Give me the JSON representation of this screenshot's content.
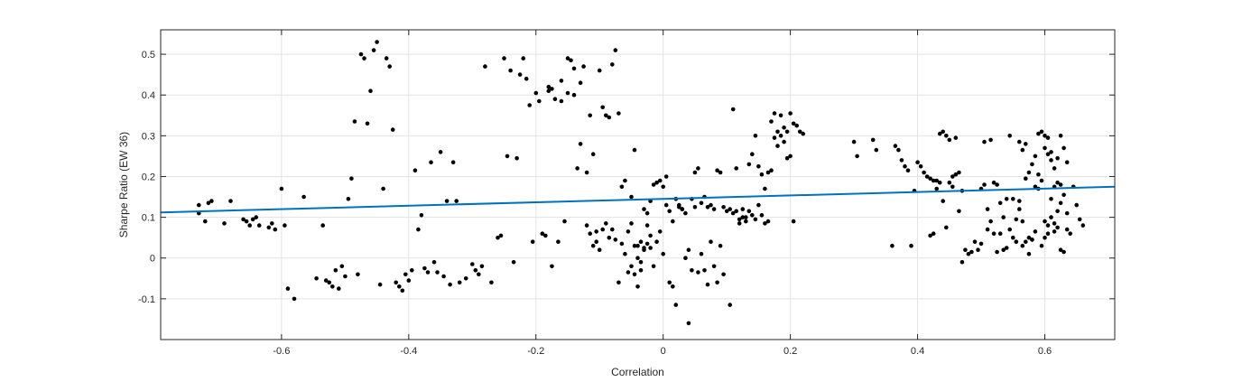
{
  "chart_data": {
    "type": "scatter",
    "title": "",
    "xlabel": "Correlation",
    "ylabel": "Sharpe Ratio (EW 36)",
    "xlim": [
      -0.79,
      0.71
    ],
    "ylim": [
      -0.2,
      0.56
    ],
    "xticks": [
      -0.6,
      -0.4,
      -0.2,
      0,
      0.2,
      0.4,
      0.6
    ],
    "yticks": [
      -0.1,
      0,
      0.1,
      0.2,
      0.3,
      0.4,
      0.5
    ],
    "xtick_labels": [
      "-0.6",
      "-0.4",
      "-0.2",
      "0",
      "0.2",
      "0.4",
      "0.6"
    ],
    "ytick_labels": [
      "-0.1",
      "0",
      "0.1",
      "0.2",
      "0.3",
      "0.4",
      "0.5"
    ],
    "grid": true,
    "colors": {
      "points": "#000000",
      "fit_line": "#0072BD",
      "grid": "#e3e3e3",
      "axes": "#262626"
    },
    "fit_line": {
      "x": [
        -0.79,
        0.71
      ],
      "y": [
        0.112,
        0.175
      ]
    },
    "points": [
      [
        -0.73,
        0.13
      ],
      [
        -0.73,
        0.11
      ],
      [
        -0.72,
        0.09
      ],
      [
        -0.715,
        0.135
      ],
      [
        -0.71,
        0.14
      ],
      [
        -0.69,
        0.085
      ],
      [
        -0.68,
        0.14
      ],
      [
        -0.66,
        0.095
      ],
      [
        -0.655,
        0.09
      ],
      [
        -0.65,
        0.08
      ],
      [
        -0.645,
        0.095
      ],
      [
        -0.64,
        0.1
      ],
      [
        -0.635,
        0.08
      ],
      [
        -0.62,
        0.075
      ],
      [
        -0.615,
        0.085
      ],
      [
        -0.61,
        0.07
      ],
      [
        -0.6,
        0.17
      ],
      [
        -0.595,
        0.08
      ],
      [
        -0.59,
        -0.075
      ],
      [
        -0.58,
        -0.1
      ],
      [
        -0.565,
        0.15
      ],
      [
        -0.545,
        -0.05
      ],
      [
        -0.535,
        0.08
      ],
      [
        -0.53,
        -0.055
      ],
      [
        -0.525,
        -0.06
      ],
      [
        -0.52,
        -0.07
      ],
      [
        -0.515,
        -0.03
      ],
      [
        -0.51,
        -0.075
      ],
      [
        -0.505,
        -0.02
      ],
      [
        -0.5,
        -0.045
      ],
      [
        -0.495,
        0.145
      ],
      [
        -0.49,
        0.195
      ],
      [
        -0.485,
        0.335
      ],
      [
        -0.48,
        -0.04
      ],
      [
        -0.475,
        0.5
      ],
      [
        -0.47,
        0.49
      ],
      [
        -0.465,
        0.33
      ],
      [
        -0.46,
        0.41
      ],
      [
        -0.455,
        0.51
      ],
      [
        -0.45,
        0.53
      ],
      [
        -0.445,
        -0.065
      ],
      [
        -0.44,
        0.17
      ],
      [
        -0.435,
        0.49
      ],
      [
        -0.43,
        0.47
      ],
      [
        -0.425,
        0.315
      ],
      [
        -0.42,
        -0.06
      ],
      [
        -0.415,
        -0.07
      ],
      [
        -0.41,
        -0.08
      ],
      [
        -0.405,
        -0.04
      ],
      [
        -0.4,
        -0.055
      ],
      [
        -0.395,
        -0.03
      ],
      [
        -0.39,
        0.215
      ],
      [
        -0.385,
        0.07
      ],
      [
        -0.38,
        0.105
      ],
      [
        -0.375,
        -0.025
      ],
      [
        -0.37,
        -0.035
      ],
      [
        -0.365,
        0.235
      ],
      [
        -0.36,
        -0.01
      ],
      [
        -0.355,
        -0.035
      ],
      [
        -0.35,
        0.26
      ],
      [
        -0.345,
        -0.045
      ],
      [
        -0.34,
        0.14
      ],
      [
        -0.335,
        -0.065
      ],
      [
        -0.33,
        0.235
      ],
      [
        -0.325,
        0.14
      ],
      [
        -0.32,
        -0.06
      ],
      [
        -0.31,
        -0.05
      ],
      [
        -0.3,
        -0.015
      ],
      [
        -0.295,
        -0.03
      ],
      [
        -0.29,
        -0.04
      ],
      [
        -0.285,
        -0.02
      ],
      [
        -0.28,
        0.47
      ],
      [
        -0.27,
        -0.06
      ],
      [
        -0.26,
        0.05
      ],
      [
        -0.255,
        0.055
      ],
      [
        -0.25,
        0.49
      ],
      [
        -0.245,
        0.25
      ],
      [
        -0.24,
        0.46
      ],
      [
        -0.235,
        -0.01
      ],
      [
        -0.23,
        0.245
      ],
      [
        -0.225,
        0.45
      ],
      [
        -0.22,
        0.49
      ],
      [
        -0.215,
        0.44
      ],
      [
        -0.21,
        0.375
      ],
      [
        -0.205,
        0.04
      ],
      [
        -0.2,
        0.405
      ],
      [
        -0.195,
        0.385
      ],
      [
        -0.19,
        0.06
      ],
      [
        -0.185,
        0.055
      ],
      [
        -0.18,
        0.42
      ],
      [
        -0.175,
        -0.02
      ],
      [
        -0.17,
        0.39
      ],
      [
        -0.165,
        0.04
      ],
      [
        -0.16,
        0.435
      ],
      [
        -0.155,
        0.09
      ],
      [
        -0.15,
        0.405
      ],
      [
        -0.14,
        0.465
      ],
      [
        -0.135,
        0.22
      ],
      [
        -0.13,
        0.28
      ],
      [
        -0.125,
        0.47
      ],
      [
        -0.12,
        0.21
      ],
      [
        -0.115,
        0.35
      ],
      [
        -0.11,
        0.255
      ],
      [
        -0.105,
        0.065
      ],
      [
        -0.1,
        0.46
      ],
      [
        -0.095,
        0.37
      ],
      [
        -0.09,
        0.35
      ],
      [
        -0.085,
        0.345
      ],
      [
        -0.08,
        0.475
      ],
      [
        -0.075,
        0.51
      ],
      [
        -0.07,
        0.355
      ],
      [
        -0.065,
        0.175
      ],
      [
        -0.06,
        0.19
      ],
      [
        -0.055,
        -0.035
      ],
      [
        -0.05,
        0.15
      ],
      [
        -0.045,
        0.265
      ],
      [
        -0.04,
        0.03
      ],
      [
        -0.035,
        0.04
      ],
      [
        -0.03,
        0.025
      ],
      [
        -0.025,
        0.035
      ],
      [
        -0.02,
        0.025
      ],
      [
        -0.18,
        0.41
      ],
      [
        -0.175,
        0.415
      ],
      [
        -0.16,
        0.385
      ],
      [
        -0.15,
        0.49
      ],
      [
        -0.145,
        0.485
      ],
      [
        -0.14,
        0.4
      ],
      [
        -0.13,
        0.43
      ],
      [
        -0.12,
        0.08
      ],
      [
        -0.115,
        0.06
      ],
      [
        -0.11,
        0.03
      ],
      [
        -0.105,
        0.04
      ],
      [
        -0.1,
        0.02
      ],
      [
        -0.095,
        0.07
      ],
      [
        -0.09,
        0.085
      ],
      [
        -0.085,
        0.05
      ],
      [
        -0.08,
        0.07
      ],
      [
        -0.075,
        0.045
      ],
      [
        -0.07,
        -0.06
      ],
      [
        -0.065,
        0.035
      ],
      [
        -0.06,
        0.01
      ],
      [
        -0.055,
        0.065
      ],
      [
        -0.05,
        0.085
      ],
      [
        -0.045,
        0.03
      ],
      [
        -0.04,
        0.0
      ],
      [
        -0.035,
        -0.01
      ],
      [
        -0.03,
        0.02
      ],
      [
        -0.025,
        0.08
      ],
      [
        -0.02,
        0.055
      ],
      [
        -0.015,
        -0.02
      ],
      [
        -0.01,
        0.04
      ],
      [
        -0.005,
        0.065
      ],
      [
        0.0,
        0.01
      ],
      [
        0.005,
        0.13
      ],
      [
        0.01,
        0.115
      ],
      [
        0.015,
        0.09
      ],
      [
        0.02,
        0.145
      ],
      [
        0.025,
        0.125
      ],
      [
        0.03,
        0.12
      ],
      [
        0.035,
        0.11
      ],
      [
        0.04,
        0.02
      ],
      [
        0.045,
        -0.03
      ],
      [
        0.05,
        0.125
      ],
      [
        0.055,
        -0.035
      ],
      [
        0.06,
        0.01
      ],
      [
        0.065,
        -0.03
      ],
      [
        0.07,
        -0.065
      ],
      [
        0.075,
        0.04
      ],
      [
        0.08,
        -0.02
      ],
      [
        0.085,
        -0.06
      ],
      [
        0.09,
        0.03
      ],
      [
        0.095,
        -0.04
      ],
      [
        -0.05,
        -0.02
      ],
      [
        -0.045,
        -0.04
      ],
      [
        -0.04,
        -0.07
      ],
      [
        -0.035,
        -0.03
      ],
      [
        -0.03,
        0.12
      ],
      [
        -0.025,
        0.11
      ],
      [
        -0.02,
        0.14
      ],
      [
        -0.015,
        0.18
      ],
      [
        -0.01,
        0.185
      ],
      [
        -0.005,
        0.19
      ],
      [
        0.0,
        0.175
      ],
      [
        0.005,
        0.2
      ],
      [
        0.01,
        -0.06
      ],
      [
        0.015,
        -0.07
      ],
      [
        0.02,
        -0.115
      ],
      [
        0.025,
        0.13
      ],
      [
        0.03,
        0.12
      ],
      [
        0.035,
        0.0
      ],
      [
        0.04,
        -0.16
      ],
      [
        0.045,
        0.145
      ],
      [
        0.05,
        0.21
      ],
      [
        0.055,
        0.22
      ],
      [
        0.06,
        0.135
      ],
      [
        0.065,
        0.15
      ],
      [
        0.07,
        0.125
      ],
      [
        0.075,
        0.13
      ],
      [
        0.08,
        0.12
      ],
      [
        0.085,
        0.215
      ],
      [
        0.09,
        0.21
      ],
      [
        0.095,
        0.125
      ],
      [
        0.1,
        0.115
      ],
      [
        0.105,
        -0.115
      ],
      [
        0.11,
        0.365
      ],
      [
        0.115,
        0.22
      ],
      [
        0.12,
        0.085
      ],
      [
        0.125,
        0.1
      ],
      [
        0.13,
        0.09
      ],
      [
        0.135,
        0.115
      ],
      [
        0.14,
        0.105
      ],
      [
        0.145,
        0.095
      ],
      [
        0.15,
        0.13
      ],
      [
        0.155,
        0.105
      ],
      [
        0.16,
        0.17
      ],
      [
        0.165,
        0.21
      ],
      [
        0.17,
        0.215
      ],
      [
        0.175,
        0.295
      ],
      [
        0.18,
        0.275
      ],
      [
        0.185,
        0.3
      ],
      [
        0.19,
        0.32
      ],
      [
        0.195,
        0.31
      ],
      [
        0.2,
        0.25
      ],
      [
        0.205,
        0.09
      ],
      [
        0.105,
        0.12
      ],
      [
        0.11,
        0.11
      ],
      [
        0.115,
        0.115
      ],
      [
        0.12,
        0.095
      ],
      [
        0.125,
        0.12
      ],
      [
        0.13,
        0.1
      ],
      [
        0.135,
        0.23
      ],
      [
        0.14,
        0.255
      ],
      [
        0.145,
        0.3
      ],
      [
        0.15,
        0.225
      ],
      [
        0.155,
        0.205
      ],
      [
        0.16,
        0.085
      ],
      [
        0.165,
        0.09
      ],
      [
        0.17,
        0.335
      ],
      [
        0.175,
        0.355
      ],
      [
        0.18,
        0.31
      ],
      [
        0.185,
        0.35
      ],
      [
        0.19,
        0.285
      ],
      [
        0.195,
        0.245
      ],
      [
        0.2,
        0.355
      ],
      [
        0.205,
        0.33
      ],
      [
        0.21,
        0.325
      ],
      [
        0.215,
        0.31
      ],
      [
        0.22,
        0.305
      ],
      [
        0.3,
        0.285
      ],
      [
        0.305,
        0.25
      ],
      [
        0.33,
        0.29
      ],
      [
        0.335,
        0.265
      ],
      [
        0.36,
        0.03
      ],
      [
        0.365,
        0.275
      ],
      [
        0.37,
        0.265
      ],
      [
        0.375,
        0.24
      ],
      [
        0.38,
        0.225
      ],
      [
        0.385,
        0.215
      ],
      [
        0.39,
        0.03
      ],
      [
        0.395,
        0.165
      ],
      [
        0.4,
        0.235
      ],
      [
        0.405,
        0.225
      ],
      [
        0.41,
        0.21
      ],
      [
        0.415,
        0.2
      ],
      [
        0.42,
        0.195
      ],
      [
        0.425,
        0.19
      ],
      [
        0.43,
        0.17
      ],
      [
        0.435,
        0.305
      ],
      [
        0.44,
        0.31
      ],
      [
        0.445,
        0.3
      ],
      [
        0.45,
        0.29
      ],
      [
        0.455,
        0.2
      ],
      [
        0.46,
        0.295
      ],
      [
        0.465,
        0.21
      ],
      [
        0.47,
        0.165
      ],
      [
        0.42,
        0.055
      ],
      [
        0.425,
        0.06
      ],
      [
        0.43,
        0.19
      ],
      [
        0.435,
        0.185
      ],
      [
        0.44,
        0.14
      ],
      [
        0.445,
        0.075
      ],
      [
        0.45,
        0.185
      ],
      [
        0.455,
        0.175
      ],
      [
        0.46,
        0.205
      ],
      [
        0.465,
        0.115
      ],
      [
        0.47,
        -0.01
      ],
      [
        0.475,
        0.02
      ],
      [
        0.48,
        0.01
      ],
      [
        0.485,
        0.015
      ],
      [
        0.49,
        0.04
      ],
      [
        0.495,
        0.02
      ],
      [
        0.5,
        0.035
      ],
      [
        0.505,
        0.285
      ],
      [
        0.51,
        0.12
      ],
      [
        0.515,
        0.29
      ],
      [
        0.52,
        0.185
      ],
      [
        0.525,
        0.18
      ],
      [
        0.53,
        0.06
      ],
      [
        0.535,
        0.02
      ],
      [
        0.54,
        0.025
      ],
      [
        0.545,
        0.3
      ],
      [
        0.55,
        0.145
      ],
      [
        0.555,
        0.095
      ],
      [
        0.56,
        0.14
      ],
      [
        0.565,
        0.03
      ],
      [
        0.57,
        0.04
      ],
      [
        0.575,
        0.01
      ],
      [
        0.58,
        0.045
      ],
      [
        0.585,
        0.175
      ],
      [
        0.59,
        0.305
      ],
      [
        0.595,
        0.31
      ],
      [
        0.6,
        0.27
      ],
      [
        0.605,
        0.255
      ],
      [
        0.61,
        0.24
      ],
      [
        0.615,
        0.175
      ],
      [
        0.62,
        0.185
      ],
      [
        0.625,
        0.3
      ],
      [
        0.63,
        0.27
      ],
      [
        0.635,
        0.235
      ],
      [
        0.64,
        0.06
      ],
      [
        0.645,
        0.175
      ],
      [
        0.65,
        0.13
      ],
      [
        0.655,
        0.095
      ],
      [
        0.66,
        0.08
      ],
      [
        0.5,
        0.17
      ],
      [
        0.505,
        0.18
      ],
      [
        0.51,
        0.07
      ],
      [
        0.515,
        0.09
      ],
      [
        0.52,
        0.06
      ],
      [
        0.525,
        0.015
      ],
      [
        0.53,
        0.135
      ],
      [
        0.535,
        0.1
      ],
      [
        0.54,
        0.145
      ],
      [
        0.545,
        0.07
      ],
      [
        0.55,
        0.05
      ],
      [
        0.555,
        0.04
      ],
      [
        0.56,
        0.12
      ],
      [
        0.565,
        0.09
      ],
      [
        0.57,
        0.195
      ],
      [
        0.575,
        0.05
      ],
      [
        0.58,
        0.045
      ],
      [
        0.585,
        0.065
      ],
      [
        0.59,
        0.17
      ],
      [
        0.595,
        0.03
      ],
      [
        0.6,
        0.05
      ],
      [
        0.605,
        0.06
      ],
      [
        0.61,
        0.1
      ],
      [
        0.615,
        0.085
      ],
      [
        0.62,
        0.075
      ],
      [
        0.625,
        0.02
      ],
      [
        0.63,
        0.015
      ],
      [
        0.635,
        0.07
      ],
      [
        0.56,
        0.285
      ],
      [
        0.565,
        0.265
      ],
      [
        0.57,
        0.28
      ],
      [
        0.575,
        0.21
      ],
      [
        0.58,
        0.23
      ],
      [
        0.585,
        0.25
      ],
      [
        0.59,
        0.205
      ],
      [
        0.595,
        0.19
      ],
      [
        0.6,
        0.09
      ],
      [
        0.605,
        0.08
      ],
      [
        0.61,
        0.145
      ],
      [
        0.615,
        0.065
      ],
      [
        0.62,
        0.115
      ],
      [
        0.625,
        0.135
      ],
      [
        0.63,
        0.155
      ],
      [
        0.635,
        0.11
      ],
      [
        0.6,
        0.3
      ],
      [
        0.605,
        0.295
      ],
      [
        0.61,
        0.26
      ],
      [
        0.615,
        0.22
      ],
      [
        0.62,
        0.245
      ],
      [
        0.625,
        0.18
      ]
    ]
  }
}
